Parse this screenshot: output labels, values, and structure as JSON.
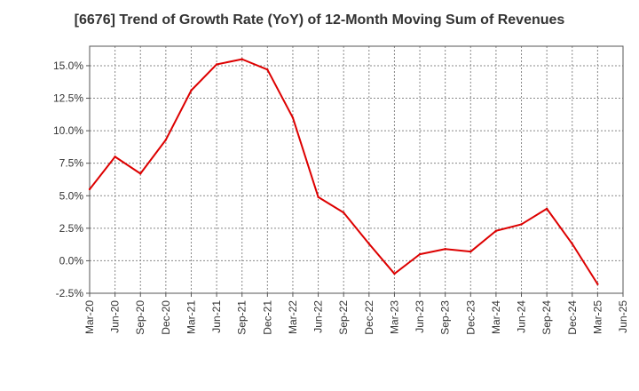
{
  "chart_data": {
    "type": "line",
    "title": "[6676]  Trend of Growth Rate (YoY) of 12-Month Moving Sum of Revenues",
    "xlabel": "",
    "ylabel": "",
    "x_ticks": [
      "Mar-20",
      "Jun-20",
      "Sep-20",
      "Dec-20",
      "Mar-21",
      "Jun-21",
      "Sep-21",
      "Dec-21",
      "Mar-22",
      "Jun-22",
      "Sep-22",
      "Dec-22",
      "Mar-23",
      "Jun-23",
      "Sep-23",
      "Dec-23",
      "Mar-24",
      "Jun-24",
      "Sep-24",
      "Dec-24",
      "Mar-25",
      "Jun-25"
    ],
    "y_ticks": [
      {
        "value": -2.5,
        "label": "-2.5%"
      },
      {
        "value": 0.0,
        "label": "0.0%"
      },
      {
        "value": 2.5,
        "label": "2.5%"
      },
      {
        "value": 5.0,
        "label": "5.0%"
      },
      {
        "value": 7.5,
        "label": "7.5%"
      },
      {
        "value": 10.0,
        "label": "10.0%"
      },
      {
        "value": 12.5,
        "label": "12.5%"
      },
      {
        "value": 15.0,
        "label": "15.0%"
      }
    ],
    "ylim": [
      -2.5,
      16.5
    ],
    "grid": true,
    "series": [
      {
        "color": "#dd0000",
        "x": [
          "Mar-20",
          "Jun-20",
          "Sep-20",
          "Dec-20",
          "Mar-21",
          "Jun-21",
          "Sep-21",
          "Dec-21",
          "Mar-22",
          "Jun-22",
          "Sep-22",
          "Dec-22",
          "Mar-23",
          "Jun-23",
          "Sep-23",
          "Dec-23",
          "Mar-24",
          "Jun-24",
          "Sep-24",
          "Dec-24",
          "Mar-25"
        ],
        "values": [
          5.5,
          8.0,
          6.7,
          9.3,
          13.1,
          15.1,
          15.5,
          14.7,
          11.0,
          4.9,
          3.7,
          1.3,
          -1.0,
          0.5,
          0.9,
          0.7,
          2.3,
          2.8,
          4.0,
          1.3,
          -1.8
        ]
      }
    ]
  }
}
